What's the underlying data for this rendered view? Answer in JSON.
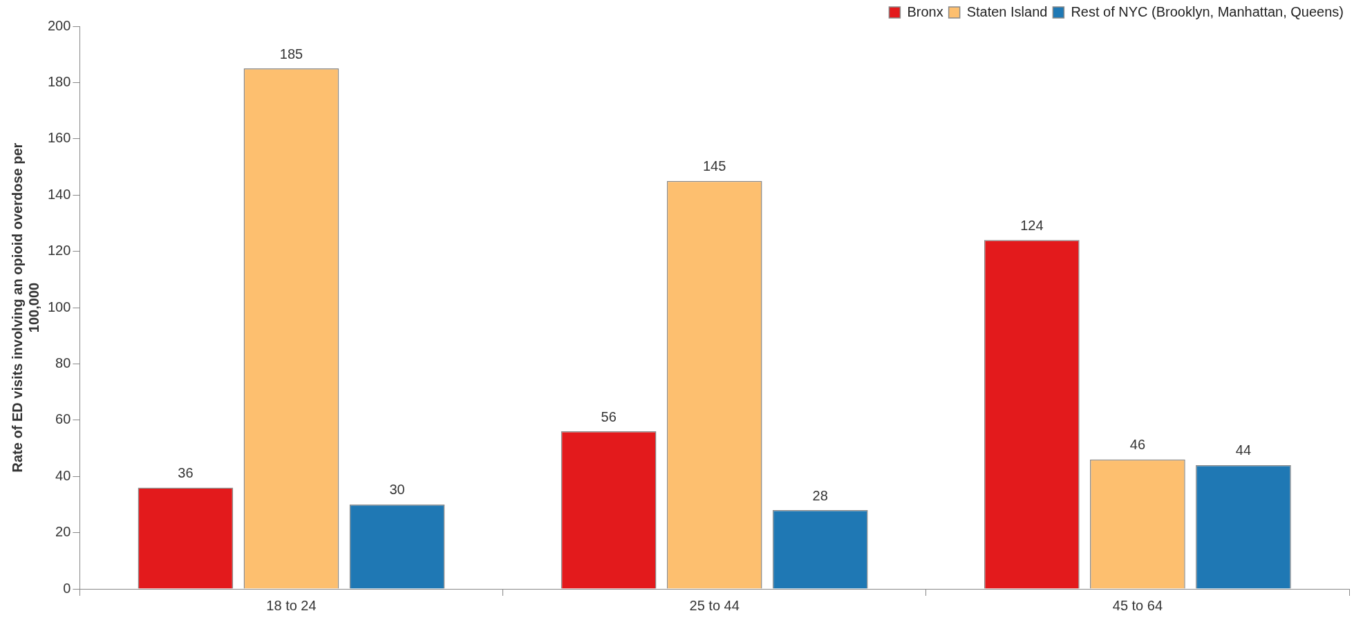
{
  "chart_data": {
    "type": "bar",
    "ylabel": "Rate of ED visits involving an opioid overdose per 100,000",
    "categories": [
      "18 to 24",
      "25 to 44",
      "45 to 64"
    ],
    "series": [
      {
        "name": "Bronx",
        "color": "#e31a1c",
        "values": [
          36,
          56,
          124
        ]
      },
      {
        "name": "Staten Island",
        "color": "#fdbf6f",
        "values": [
          185,
          145,
          46
        ]
      },
      {
        "name": "Rest of NYC (Brooklyn, Manhattan, Queens)",
        "color": "#1f78b4",
        "values": [
          30,
          28,
          44
        ]
      }
    ],
    "ylim": [
      0,
      200
    ],
    "yticks": [
      0,
      20,
      40,
      60,
      80,
      100,
      120,
      140,
      160,
      180,
      200
    ],
    "grid": false,
    "legend": "top right",
    "data_labels": true
  }
}
